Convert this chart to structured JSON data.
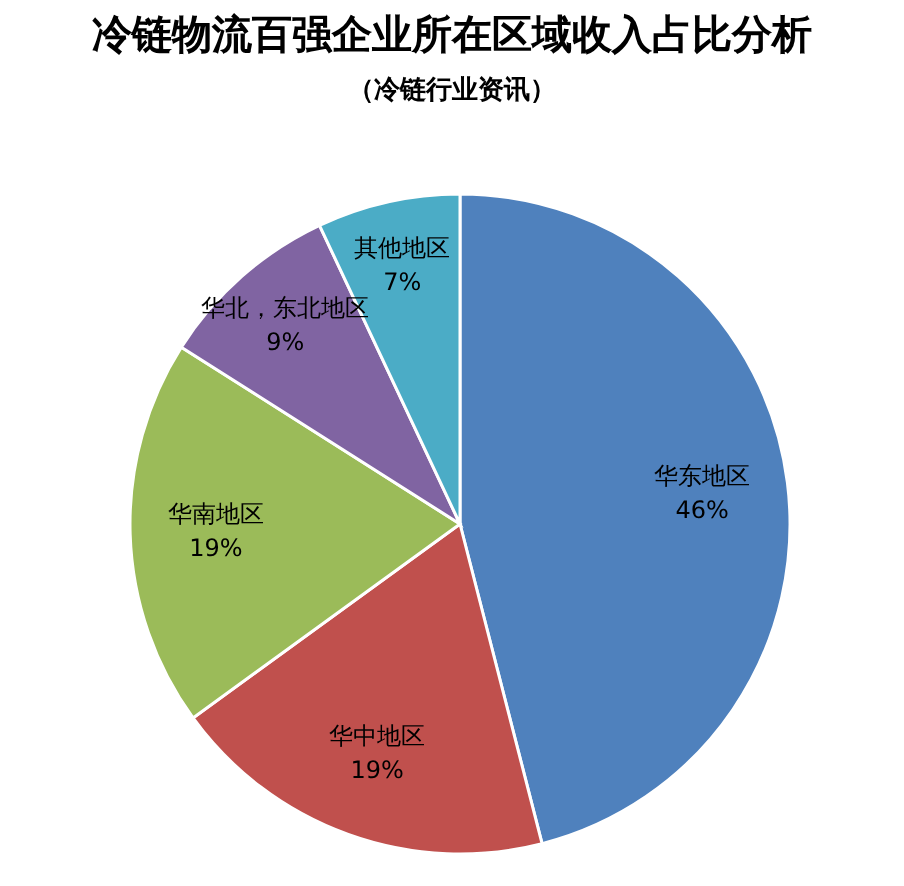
{
  "chart_data": {
    "type": "pie",
    "title": "冷链物流百强企业所在区域收入占比分析",
    "subtitle": "（冷链行业资讯）",
    "categories": [
      "华东地区",
      "华中地区",
      "华南地区",
      "华北，东北地区",
      "其他地区"
    ],
    "values": [
      46,
      19,
      19,
      9,
      7
    ],
    "colors": [
      "#4f81bd",
      "#c0504d",
      "#9bbb59",
      "#8064a2",
      "#4bacc6"
    ],
    "value_labels": [
      "46%",
      "19%",
      "19%",
      "9%",
      "7%"
    ],
    "legend": false
  }
}
